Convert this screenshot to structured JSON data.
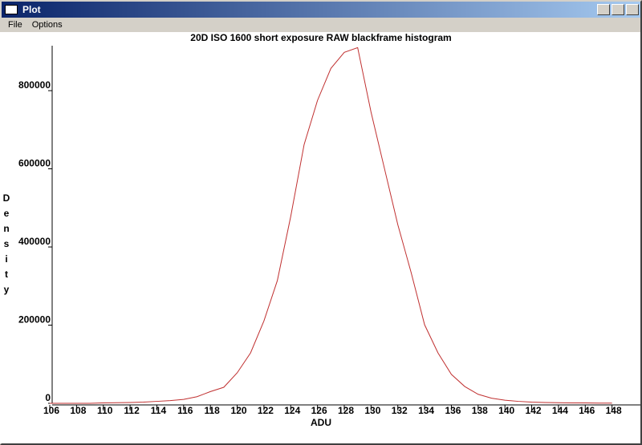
{
  "window": {
    "title": "Plot",
    "menu": [
      "File",
      "Options"
    ]
  },
  "chart_data": {
    "type": "line",
    "title": "20D ISO 1600 short exposure RAW blackframe histogram",
    "x_label": "ADU",
    "y_label": "Density",
    "x": [
      106,
      107,
      108,
      109,
      110,
      111,
      112,
      113,
      114,
      115,
      116,
      117,
      118,
      119,
      120,
      121,
      122,
      123,
      124,
      125,
      126,
      127,
      128,
      129,
      130,
      131,
      132,
      133,
      134,
      135,
      136,
      137,
      138,
      139,
      140,
      141,
      142,
      143,
      144,
      145,
      146,
      147,
      148
    ],
    "series": [
      {
        "name": "Density",
        "color": "#c03030",
        "values": [
          0,
          0,
          0,
          0,
          1000,
          1500,
          2000,
          3000,
          5000,
          7000,
          10000,
          17000,
          30000,
          41000,
          78000,
          129000,
          211000,
          314000,
          478000,
          662000,
          775000,
          857000,
          898000,
          910000,
          745000,
          601000,
          457000,
          334000,
          201000,
          129000,
          74000,
          43000,
          23000,
          13000,
          8000,
          5000,
          3000,
          2000,
          1500,
          1000,
          1000,
          500,
          500
        ]
      }
    ],
    "xlim": [
      106,
      150
    ],
    "ylim": [
      0,
      915000
    ],
    "xticks": [
      106,
      108,
      110,
      112,
      114,
      116,
      118,
      120,
      122,
      124,
      126,
      128,
      130,
      132,
      134,
      136,
      138,
      140,
      142,
      144,
      146,
      148
    ],
    "yticks": [
      0,
      200000,
      400000,
      600000,
      800000
    ]
  }
}
